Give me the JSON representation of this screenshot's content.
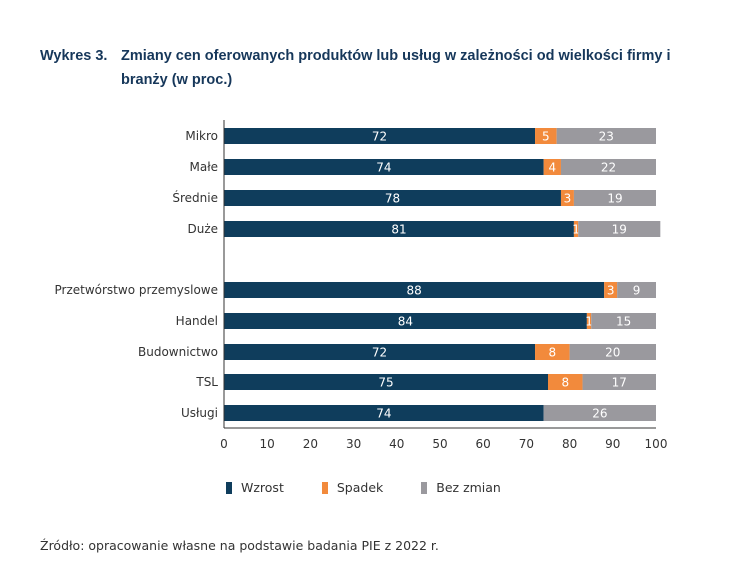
{
  "title": {
    "number": "Wykres 3.",
    "text": "Zmiany cen oferowanych produktów lub usług w zależności od wielkości firmy i branży (w proc.)"
  },
  "chart_data": {
    "type": "bar",
    "orientation": "horizontal",
    "stacked": true,
    "title": "Zmiany cen oferowanych produktów lub usług w zależności od wielkości firmy i branży (w proc.)",
    "xlabel": "",
    "ylabel": "",
    "xlim": [
      0,
      100
    ],
    "xticks": [
      0,
      10,
      20,
      30,
      40,
      50,
      60,
      70,
      80,
      90,
      100
    ],
    "grid": false,
    "legend_position": "bottom",
    "groups": [
      [
        "Mikro",
        "Małe",
        "Średnie",
        "Duże"
      ],
      [
        "Przetwórstwo przemyslowe",
        "Handel",
        "Budownictwo",
        "TSL",
        "Usługi"
      ]
    ],
    "categories": [
      "Mikro",
      "Małe",
      "Średnie",
      "Duże",
      "Przetwórstwo przemyslowe",
      "Handel",
      "Budownictwo",
      "TSL",
      "Usługi"
    ],
    "series": [
      {
        "name": "Wzrost",
        "color": "#0f3d5c",
        "values": [
          72,
          74,
          78,
          81,
          88,
          84,
          72,
          75,
          74
        ]
      },
      {
        "name": "Spadek",
        "color": "#f28a3c",
        "values": [
          5,
          4,
          3,
          1,
          3,
          1,
          8,
          8,
          0
        ]
      },
      {
        "name": "Bez zmian",
        "color": "#9a999e",
        "values": [
          23,
          22,
          19,
          19,
          9,
          15,
          20,
          17,
          26
        ]
      }
    ]
  },
  "legend": [
    {
      "label": "Wzrost",
      "color": "#0f3d5c"
    },
    {
      "label": "Spadek",
      "color": "#f28a3c"
    },
    {
      "label": "Bez zmian",
      "color": "#9a999e"
    }
  ],
  "source": "Źródło: opracowanie własne na podstawie badania PIE z 2022 r."
}
